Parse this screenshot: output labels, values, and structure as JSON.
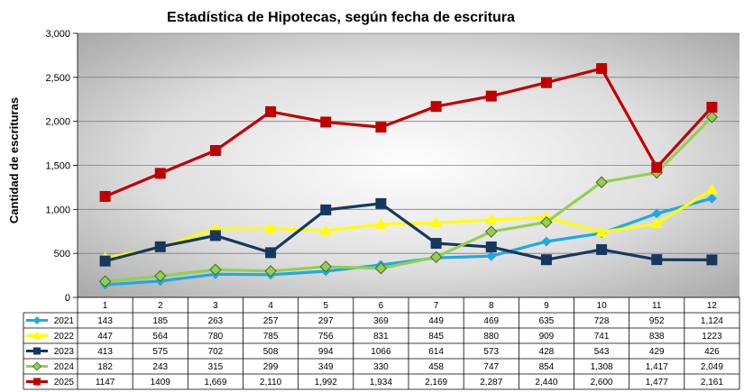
{
  "chart_data": {
    "type": "line",
    "title": "Estadística de Hipotecas, según fecha de escritura",
    "xlabel": "",
    "ylabel": "Cantidad de escrituras",
    "ylim": [
      0,
      3000
    ],
    "yticks": [
      "0",
      "500",
      "1,000",
      "1,500",
      "2,000",
      "2,500",
      "3,000"
    ],
    "yticks_values": [
      0,
      500,
      1000,
      1500,
      2000,
      2500,
      3000
    ],
    "grid": true,
    "legend_placement": "data-table-left",
    "categories": [
      "1",
      "2",
      "3",
      "4",
      "5",
      "6",
      "7",
      "8",
      "9",
      "10",
      "11",
      "12"
    ],
    "series": [
      {
        "name": "2021",
        "color": "#1fa9e1",
        "marker": "diamond",
        "values": [
          143,
          185,
          263,
          257,
          297,
          369,
          449,
          469,
          635,
          728,
          952,
          1124
        ],
        "labels": [
          "143",
          "185",
          "263",
          "257",
          "297",
          "369",
          "449",
          "469",
          "635",
          "728",
          "952",
          "1,124"
        ]
      },
      {
        "name": "2022",
        "color": "#ffff00",
        "marker": "triangle",
        "values": [
          447,
          564,
          780,
          785,
          756,
          831,
          845,
          880,
          909,
          741,
          838,
          1223
        ],
        "labels": [
          "447",
          "564",
          "780",
          "785",
          "756",
          "831",
          "845",
          "880",
          "909",
          "741",
          "838",
          "1223"
        ]
      },
      {
        "name": "2023",
        "color": "#17375e",
        "marker": "square",
        "values": [
          413,
          575,
          702,
          508,
          994,
          1066,
          614,
          573,
          428,
          543,
          429,
          426
        ],
        "labels": [
          "413",
          "575",
          "702",
          "508",
          "994",
          "1066",
          "614",
          "573",
          "428",
          "543",
          "429",
          "426"
        ]
      },
      {
        "name": "2024",
        "color": "#92d050",
        "marker": "diamond-outline",
        "values": [
          182,
          243,
          315,
          299,
          349,
          330,
          458,
          747,
          854,
          1308,
          1417,
          2049
        ],
        "labels": [
          "182",
          "243",
          "315",
          "299",
          "349",
          "330",
          "458",
          "747",
          "854",
          "1,308",
          "1,417",
          "2,049"
        ]
      },
      {
        "name": "2025",
        "color": "#c00000",
        "marker": "square",
        "values": [
          1147,
          1409,
          1669,
          2110,
          1992,
          1934,
          2169,
          2287,
          2440,
          2600,
          1477,
          2161
        ],
        "labels": [
          "1147",
          "1409",
          "1,669",
          "2,110",
          "1,992",
          "1,934",
          "2,169",
          "2,287",
          "2,440",
          "2,600",
          "1,477",
          "2,161"
        ]
      }
    ]
  }
}
